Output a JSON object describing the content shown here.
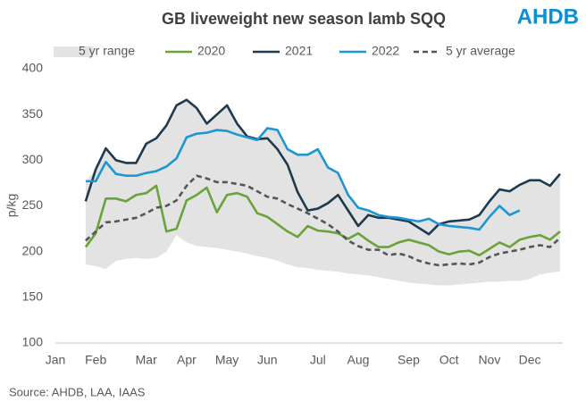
{
  "chart_data": {
    "type": "line",
    "title": "GB liveweight  new season lamb SQQ",
    "logo": "AHDB",
    "y_label": "p/kg",
    "source": "Source: AHDB, LAA, IAAS",
    "categories": [
      "Jan",
      null,
      null,
      null,
      "Feb",
      null,
      null,
      null,
      null,
      "Mar",
      null,
      null,
      null,
      "Apr",
      null,
      null,
      null,
      "May",
      null,
      null,
      null,
      "Jun",
      null,
      null,
      null,
      null,
      "Jul",
      null,
      null,
      null,
      "Aug",
      null,
      null,
      null,
      null,
      "Sep",
      null,
      null,
      null,
      "Oct",
      null,
      null,
      null,
      "Nov",
      null,
      null,
      null,
      "Dec",
      null,
      null,
      null
    ],
    "ylim": [
      100,
      400
    ],
    "yticks": [
      100,
      150,
      200,
      250,
      300,
      350,
      400
    ],
    "grid": false,
    "legend": "top",
    "series": [
      {
        "name": "5 yr range",
        "color": "#e3e3e3",
        "kind": "range",
        "high": [
          null,
          null,
          null,
          277,
          290,
          313,
          300,
          297,
          297,
          318,
          324,
          338,
          360,
          366,
          357,
          340,
          350,
          360,
          340,
          326,
          323,
          335,
          333,
          312,
          306,
          306,
          312,
          292,
          286,
          262,
          248,
          245,
          240,
          238,
          237,
          235,
          233,
          236,
          230,
          233,
          234,
          235,
          240,
          255,
          268,
          266,
          273,
          278,
          278,
          272,
          285
        ],
        "low": [
          null,
          null,
          null,
          186,
          184,
          181,
          190,
          192,
          193,
          192,
          193,
          200,
          218,
          210,
          206,
          205,
          204,
          202,
          200,
          198,
          195,
          193,
          190,
          186,
          183,
          182,
          180,
          179,
          178,
          176,
          175,
          174,
          172,
          170,
          168,
          166,
          165,
          164,
          163,
          163,
          164,
          165,
          166,
          167,
          167,
          168,
          168,
          170,
          175,
          177,
          178
        ]
      },
      {
        "name": "2020",
        "color": "#6aa33a",
        "values": [
          null,
          null,
          null,
          205,
          220,
          258,
          258,
          255,
          262,
          264,
          272,
          222,
          225,
          256,
          262,
          270,
          243,
          262,
          264,
          260,
          242,
          238,
          230,
          222,
          216,
          228,
          223,
          222,
          220,
          214,
          220,
          212,
          205,
          205,
          210,
          213,
          210,
          207,
          200,
          197,
          200,
          201,
          196,
          203,
          210,
          205,
          213,
          216,
          218,
          213,
          222
        ]
      },
      {
        "name": "2021",
        "color": "#1f3a4d",
        "values": [
          null,
          null,
          null,
          255,
          290,
          313,
          300,
          297,
          297,
          318,
          324,
          338,
          360,
          366,
          357,
          340,
          350,
          360,
          340,
          326,
          323,
          324,
          312,
          295,
          265,
          245,
          247,
          253,
          262,
          245,
          228,
          240,
          237,
          237,
          235,
          233,
          226,
          219,
          230,
          233,
          234,
          235,
          240,
          255,
          268,
          266,
          273,
          278,
          278,
          272,
          285
        ]
      },
      {
        "name": "2022",
        "color": "#1e96d2",
        "values": [
          null,
          null,
          null,
          277,
          277,
          298,
          285,
          283,
          283,
          286,
          288,
          293,
          302,
          325,
          329,
          330,
          333,
          332,
          328,
          325,
          322,
          335,
          333,
          312,
          306,
          306,
          312,
          292,
          286,
          262,
          248,
          245,
          240,
          238,
          237,
          235,
          233,
          236,
          230,
          228,
          227,
          226,
          224,
          238,
          250,
          240,
          245,
          null,
          null,
          null,
          null
        ]
      },
      {
        "name": "5 yr average",
        "color": "#555555",
        "dashed": true,
        "values": [
          null,
          null,
          null,
          212,
          222,
          232,
          233,
          235,
          237,
          242,
          248,
          250,
          256,
          272,
          283,
          280,
          276,
          276,
          274,
          272,
          266,
          260,
          258,
          252,
          247,
          242,
          236,
          230,
          222,
          212,
          206,
          202,
          202,
          196,
          198,
          195,
          190,
          187,
          185,
          186,
          187,
          186,
          188,
          194,
          198,
          200,
          202,
          205,
          207,
          205,
          215
        ]
      }
    ]
  }
}
